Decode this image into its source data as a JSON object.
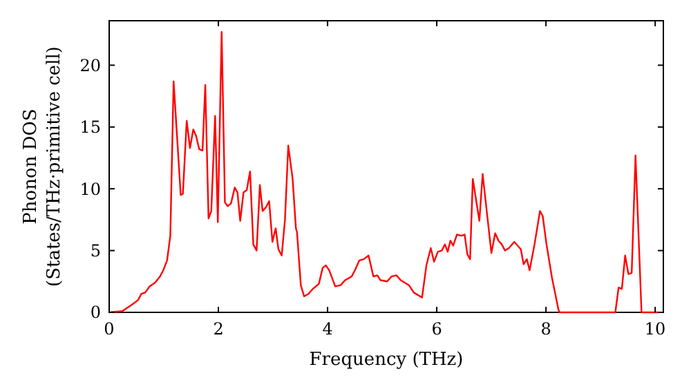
{
  "chart_data": {
    "type": "line",
    "xlabel": "Frequency (THz)",
    "ylabel": "Phonon DOS\n(States/THz·primitive cell)",
    "xlim": [
      0,
      10.15
    ],
    "ylim": [
      0,
      23.6
    ],
    "xticks": [
      0,
      2,
      4,
      6,
      8,
      10
    ],
    "yticks": [
      0,
      5,
      10,
      15,
      20
    ],
    "grid": false,
    "x": [
      0,
      0.24,
      0.41,
      0.53,
      0.59,
      0.66,
      0.74,
      0.84,
      0.93,
      0.99,
      1.06,
      1.12,
      1.18,
      1.31,
      1.35,
      1.42,
      1.48,
      1.54,
      1.59,
      1.65,
      1.71,
      1.76,
      1.82,
      1.87,
      1.94,
      1.99,
      2.06,
      2.12,
      2.17,
      2.23,
      2.3,
      2.35,
      2.4,
      2.46,
      2.52,
      2.58,
      2.64,
      2.7,
      2.76,
      2.81,
      2.87,
      2.93,
      2.99,
      3.05,
      3.1,
      3.16,
      3.22,
      3.28,
      3.36,
      3.42,
      3.44,
      3.51,
      3.57,
      3.65,
      3.73,
      3.84,
      3.91,
      3.97,
      4.03,
      4.14,
      4.24,
      4.32,
      4.44,
      4.5,
      4.58,
      4.66,
      4.75,
      4.84,
      4.91,
      4.97,
      5.09,
      5.17,
      5.26,
      5.34,
      5.49,
      5.58,
      5.73,
      5.81,
      5.89,
      5.95,
      6.02,
      6.09,
      6.15,
      6.2,
      6.25,
      6.3,
      6.37,
      6.45,
      6.51,
      6.56,
      6.61,
      6.66,
      6.78,
      6.84,
      6.93,
      7.0,
      7.07,
      7.13,
      7.19,
      7.25,
      7.32,
      7.42,
      7.54,
      7.59,
      7.65,
      7.7,
      7.79,
      7.89,
      7.94,
      8.01,
      8.11,
      8.23,
      8.25,
      9.27,
      9.33,
      9.39,
      9.45,
      9.51,
      9.57,
      9.64,
      9.75,
      10.05
    ],
    "series": [
      {
        "color": "#ff0000",
        "values": [
          0,
          0.1,
          0.6,
          1.0,
          1.5,
          1.6,
          2.1,
          2.4,
          2.9,
          3.4,
          4.2,
          6.2,
          18.7,
          9.5,
          9.6,
          15.5,
          13.3,
          14.8,
          14.3,
          13.2,
          13.1,
          18.4,
          7.6,
          8.2,
          15.9,
          7.3,
          22.7,
          8.9,
          8.6,
          8.8,
          10.1,
          9.7,
          7.4,
          9.7,
          9.9,
          11.4,
          5.5,
          5.0,
          10.3,
          8.2,
          8.5,
          9.0,
          5.7,
          6.8,
          5.1,
          4.6,
          7.5,
          13.5,
          10.8,
          6.8,
          6.5,
          2.2,
          1.3,
          1.5,
          1.9,
          2.3,
          3.6,
          3.8,
          3.4,
          2.1,
          2.2,
          2.6,
          2.9,
          3.4,
          4.2,
          4.3,
          4.6,
          2.9,
          3.0,
          2.6,
          2.5,
          2.9,
          3.0,
          2.6,
          2.2,
          1.6,
          1.2,
          3.8,
          5.2,
          4.1,
          4.9,
          5.0,
          5.5,
          4.9,
          5.8,
          5.4,
          6.3,
          6.2,
          6.3,
          4.7,
          4.3,
          10.8,
          7.4,
          11.2,
          7.6,
          4.8,
          6.4,
          5.8,
          5.5,
          5.0,
          5.2,
          5.7,
          5.1,
          3.9,
          4.3,
          3.4,
          5.5,
          8.2,
          7.8,
          5.5,
          2.8,
          0.2,
          0,
          0,
          2.0,
          1.9,
          4.6,
          3.1,
          3.2,
          12.7,
          0,
          0
        ]
      }
    ]
  }
}
